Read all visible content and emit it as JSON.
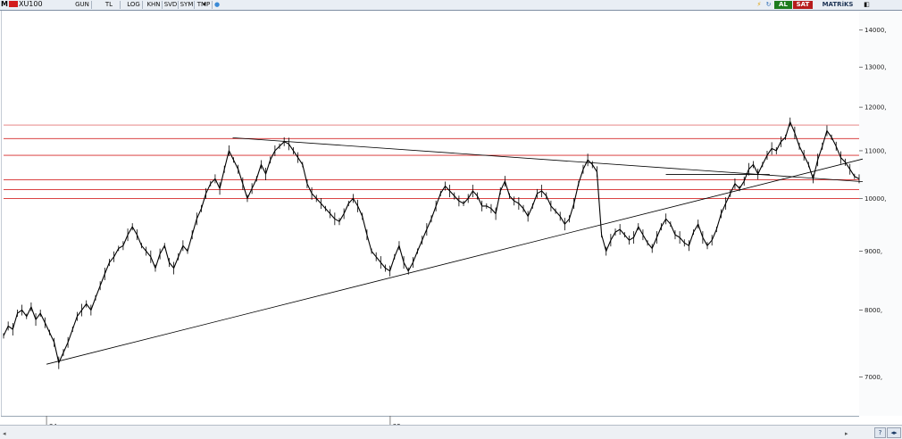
{
  "toolbar": {
    "symbol_prefix": "M",
    "symbol_name": "XU100",
    "buttons": [
      "GUN",
      "TL",
      "LOG",
      "KHN",
      "SVD",
      "SYM",
      "TMP"
    ],
    "buy_label": "AL",
    "sell_label": "SAT",
    "matrix_label": "MATRiKS"
  },
  "colors": {
    "buy": "#1d7b1d",
    "sell": "#b71c1c",
    "price": "#000000",
    "resistance": "#d42828",
    "trend": "#000000"
  },
  "chart_data": {
    "type": "line",
    "title": "",
    "xlabel": "",
    "ylabel": "",
    "yscale": "log",
    "ylim": [
      6500,
      14500
    ],
    "y_ticks": [
      "14000,",
      "13000,",
      "12000,",
      "11000,",
      "10000,",
      "9000,",
      "8000,",
      "7000,"
    ],
    "y_tick_values": [
      14000,
      13000,
      12000,
      11000,
      10000,
      9000,
      8000,
      7000
    ],
    "x_ticks": [
      "24",
      "25"
    ],
    "x_tick_index": [
      12,
      108
    ],
    "n_points": 240,
    "horizontal_levels": [
      11580,
      11270,
      10900,
      10380,
      10180,
      10000
    ],
    "trendlines": [
      {
        "x": [
          12,
          240
        ],
        "y": [
          7180,
          10820
        ]
      },
      {
        "x": [
          64,
          240
        ],
        "y": [
          11290,
          10340
        ]
      },
      {
        "x": [
          185,
          214
        ],
        "y": [
          10490,
          10490
        ]
      }
    ],
    "series": [
      {
        "values": [
          7600,
          7750,
          7700,
          7950,
          8000,
          7900,
          8050,
          7850,
          7950,
          7800,
          7650,
          7500,
          7200,
          7350,
          7500,
          7700,
          7900,
          8000,
          8100,
          8000,
          8200,
          8400,
          8600,
          8800,
          8900,
          9050,
          9100,
          9300,
          9450,
          9300,
          9100,
          9000,
          8900,
          8700,
          8950,
          9100,
          8800,
          8700,
          8900,
          9100,
          9000,
          9300,
          9600,
          9800,
          10100,
          10300,
          10400,
          10200,
          10600,
          11000,
          10800,
          10600,
          10300,
          10000,
          10200,
          10400,
          10700,
          10500,
          10800,
          11000,
          11100,
          11200,
          11150,
          11000,
          10850,
          10700,
          10300,
          10100,
          10000,
          9900,
          9800,
          9700,
          9600,
          9550,
          9700,
          9900,
          10000,
          9850,
          9650,
          9300,
          9000,
          8900,
          8800,
          8700,
          8650,
          8900,
          9100,
          8800,
          8650,
          8800,
          9000,
          9200,
          9400,
          9600,
          9850,
          10100,
          10250,
          10150,
          10050,
          9950,
          9900,
          10000,
          10150,
          10050,
          9850,
          9850,
          9800,
          9700,
          10150,
          10350,
          10050,
          9950,
          9900,
          9800,
          9650,
          9850,
          10100,
          10150,
          10050,
          9850,
          9750,
          9650,
          9500,
          9600,
          9900,
          10300,
          10600,
          10800,
          10700,
          10550,
          9300,
          9000,
          9200,
          9350,
          9400,
          9300,
          9200,
          9250,
          9450,
          9300,
          9150,
          9050,
          9250,
          9450,
          9600,
          9500,
          9300,
          9250,
          9150,
          9100,
          9350,
          9500,
          9250,
          9100,
          9200,
          9400,
          9700,
          9900,
          10100,
          10300,
          10200,
          10350,
          10600,
          10700,
          10500,
          10700,
          10900,
          11050,
          11000,
          11200,
          11300,
          11650,
          11400,
          11100,
          10900,
          10700,
          10400,
          10800,
          11100,
          11450,
          11300,
          11100,
          10850,
          10750,
          10600,
          10450,
          10400
        ]
      }
    ]
  }
}
